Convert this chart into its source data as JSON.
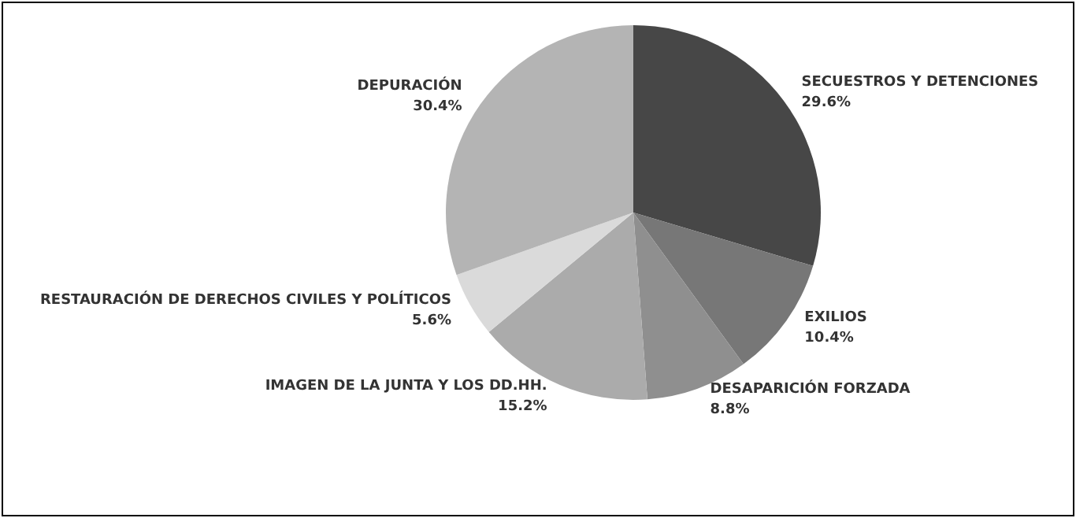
{
  "chart_data": {
    "type": "pie",
    "categories": [
      "SECUESTROS Y DETENCIONES",
      "EXILIOS",
      "DESAPARICIÓN FORZADA",
      "IMAGEN DE LA JUNTA Y LOS DD.HH.",
      "RESTAURACIÓN DE DERECHOS CIVILES Y POLÍTICOS",
      "DEPURACIÓN"
    ],
    "values": [
      29.6,
      10.4,
      8.8,
      15.2,
      5.6,
      30.4
    ],
    "value_labels": [
      "29.6%",
      "10.4%",
      "8.8%",
      "15.2%",
      "5.6%",
      "30.4%"
    ],
    "colors": [
      "#474747",
      "#777777",
      "#8f8f8f",
      "#ababab",
      "#dadada",
      "#b4b4b4"
    ],
    "legend": false
  }
}
